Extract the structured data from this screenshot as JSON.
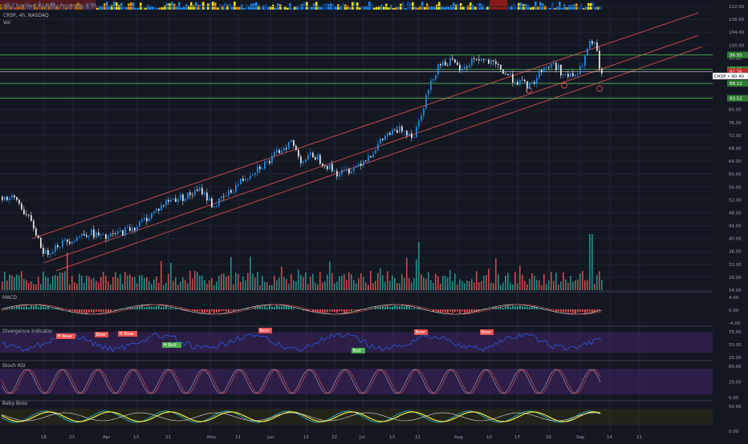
{
  "header": {
    "strip_label": "Ba... Realized Volatility Percentile & Sh...",
    "symbol_line": "CRSP, 4h, NASDAQ",
    "vol_label": "Vol"
  },
  "price_axis": [
    "112.00",
    "108.00",
    "104.00",
    "100.00",
    "96.00",
    "92.00",
    "88.00",
    "84.00",
    "80.00",
    "76.00",
    "72.00",
    "68.00",
    "64.00",
    "60.00",
    "56.00",
    "52.00",
    "48.00",
    "44.00",
    "40.00",
    "36.00",
    "32.00",
    "28.00",
    "24.00"
  ],
  "price_tags": [
    {
      "text": "96.95",
      "color": "#2e7d32"
    },
    {
      "text": "92.45",
      "color": "#2e7d32"
    },
    {
      "text": "91.76",
      "color": "#c62828"
    },
    {
      "text": "88.12",
      "color": "#2e7d32"
    },
    {
      "text": "83.52",
      "color": "#2e7d32"
    }
  ],
  "last_price": {
    "symbol": "CRSP",
    "value": "90.40"
  },
  "time_axis": [
    "16",
    "23",
    "Apr",
    "13",
    "21",
    "May",
    "11",
    "Jun",
    "15",
    "22",
    "Jul",
    "13",
    "21",
    "Aug",
    "10",
    "17",
    "25",
    "Sep",
    "14",
    "21"
  ],
  "panels": {
    "macd": {
      "title": "MACD",
      "axis": [
        "4.00",
        "0.00",
        "-4.00"
      ]
    },
    "divergence": {
      "title": "Divergence Indicator",
      "axis": [
        "75.00",
        "50.00",
        "25.00"
      ],
      "tags": [
        {
          "text": "H Bear",
          "kind": "bear"
        },
        {
          "text": "Bear",
          "kind": "bear"
        },
        {
          "text": "H Bear",
          "kind": "bear"
        },
        {
          "text": "H Bull",
          "kind": "bull"
        },
        {
          "text": "Bear",
          "kind": "bear"
        },
        {
          "text": "Bull",
          "kind": "bull"
        },
        {
          "text": "Bear",
          "kind": "bear"
        },
        {
          "text": "Bear",
          "kind": "bear"
        }
      ]
    },
    "stochrsi": {
      "title": "Stoch RSI",
      "axis": [
        "80.00",
        "20.00",
        "0.00"
      ]
    },
    "bigboss": {
      "title": "Baby Boss",
      "axis": [
        "50.00",
        "0.00"
      ]
    }
  },
  "colors": {
    "background": "#131722",
    "up_candle": "#1e88e5",
    "down_candle": "#e0e0e0",
    "channel": "#ef5350",
    "support": "#4caf50",
    "vol_up": "#26a69a",
    "vol_down": "#ef5350",
    "divergence_line": "#2962ff",
    "stoch_k": "#b0a8c8",
    "stoch_d": "#ef5350"
  },
  "chart_data": {
    "type": "candlestick",
    "title": "CRSP, 4h, NASDAQ",
    "xlabel": "",
    "ylabel": "",
    "ylim": [
      24,
      112
    ],
    "x_ticks": [
      "16",
      "23",
      "Apr",
      "13",
      "21",
      "May",
      "11",
      "Jun",
      "15",
      "22",
      "Jul",
      "13",
      "21",
      "Aug",
      "10",
      "17",
      "25",
      "Sep",
      "14",
      "21"
    ],
    "price_path": [
      [
        0,
        53
      ],
      [
        20,
        52
      ],
      [
        40,
        44
      ],
      [
        55,
        35
      ],
      [
        70,
        38
      ],
      [
        90,
        40
      ],
      [
        110,
        42
      ],
      [
        130,
        40
      ],
      [
        150,
        42
      ],
      [
        170,
        44
      ],
      [
        190,
        48
      ],
      [
        210,
        52
      ],
      [
        230,
        53
      ],
      [
        250,
        55
      ],
      [
        265,
        50
      ],
      [
        280,
        53
      ],
      [
        300,
        58
      ],
      [
        320,
        62
      ],
      [
        335,
        64
      ],
      [
        350,
        68
      ],
      [
        362,
        70
      ],
      [
        375,
        64
      ],
      [
        390,
        66
      ],
      [
        405,
        63
      ],
      [
        420,
        60
      ],
      [
        440,
        62
      ],
      [
        460,
        66
      ],
      [
        480,
        72
      ],
      [
        500,
        74
      ],
      [
        515,
        72
      ],
      [
        530,
        84
      ],
      [
        545,
        94
      ],
      [
        560,
        95
      ],
      [
        575,
        92
      ],
      [
        590,
        96
      ],
      [
        605,
        95
      ],
      [
        620,
        93
      ],
      [
        635,
        90
      ],
      [
        650,
        88
      ],
      [
        660,
        87
      ],
      [
        675,
        93
      ],
      [
        690,
        94
      ],
      [
        705,
        90
      ],
      [
        720,
        91
      ],
      [
        735,
        101
      ],
      [
        742,
        99
      ],
      [
        748,
        90
      ]
    ],
    "support_levels": [
      96.95,
      92.45,
      88.12,
      83.52
    ],
    "resistance_levels": [
      91.76
    ],
    "last_close": 90.4
  }
}
